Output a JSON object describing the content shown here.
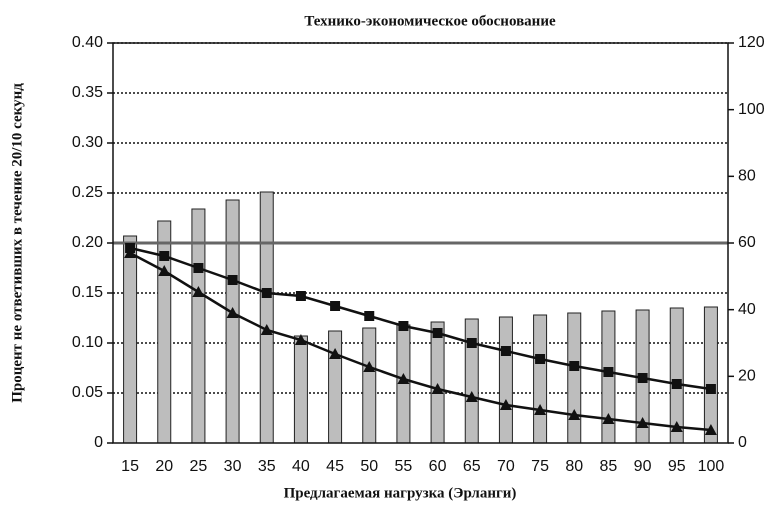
{
  "chart_data": {
    "type": "bar",
    "title": "Технико-экономическое обоснование",
    "xlabel": "Предлагаемая нагрузка (Эрланги)",
    "ylabel": "Процент не ответивших в течение 20/10 секунд",
    "categories": [
      15,
      20,
      25,
      30,
      35,
      40,
      45,
      50,
      55,
      60,
      65,
      70,
      75,
      80,
      85,
      90,
      95,
      100
    ],
    "ylim": [
      0,
      0.4
    ],
    "yticks": [
      0,
      0.05,
      {
        "value": 0.1,
        "label": "0.10"
      },
      0.15,
      {
        "value": 0.2,
        "label": "0.20"
      },
      0.25,
      {
        "value": 0.3,
        "label": "0.30"
      },
      0.35,
      {
        "value": 0.4,
        "label": "0.40"
      }
    ],
    "y2lim": [
      0,
      120
    ],
    "y2ticks": [
      0,
      20,
      40,
      60,
      80,
      100,
      120
    ],
    "grid": true,
    "reference_line": 0.2,
    "series": [
      {
        "type": "bar",
        "axis": "y2",
        "color": "#bdbdbd",
        "values": [
          62.1,
          66.6,
          70.2,
          72.9,
          75.3,
          32.1,
          33.6,
          34.5,
          35.4,
          36.3,
          37.2,
          37.8,
          38.4,
          39.0,
          39.6,
          39.9,
          40.5,
          40.8
        ]
      },
      {
        "type": "line",
        "marker": "square",
        "color": "#111111",
        "values": [
          0.195,
          0.187,
          0.175,
          0.163,
          0.15,
          0.147,
          0.137,
          0.127,
          0.117,
          0.11,
          0.1,
          0.092,
          0.084,
          0.077,
          0.071,
          0.065,
          0.059,
          0.054
        ]
      },
      {
        "type": "line",
        "marker": "triangle",
        "color": "#111111",
        "values": [
          0.19,
          0.172,
          0.151,
          0.13,
          0.113,
          0.103,
          0.089,
          0.076,
          0.064,
          0.054,
          0.046,
          0.038,
          0.033,
          0.028,
          0.024,
          0.02,
          0.016,
          0.013
        ]
      }
    ]
  }
}
